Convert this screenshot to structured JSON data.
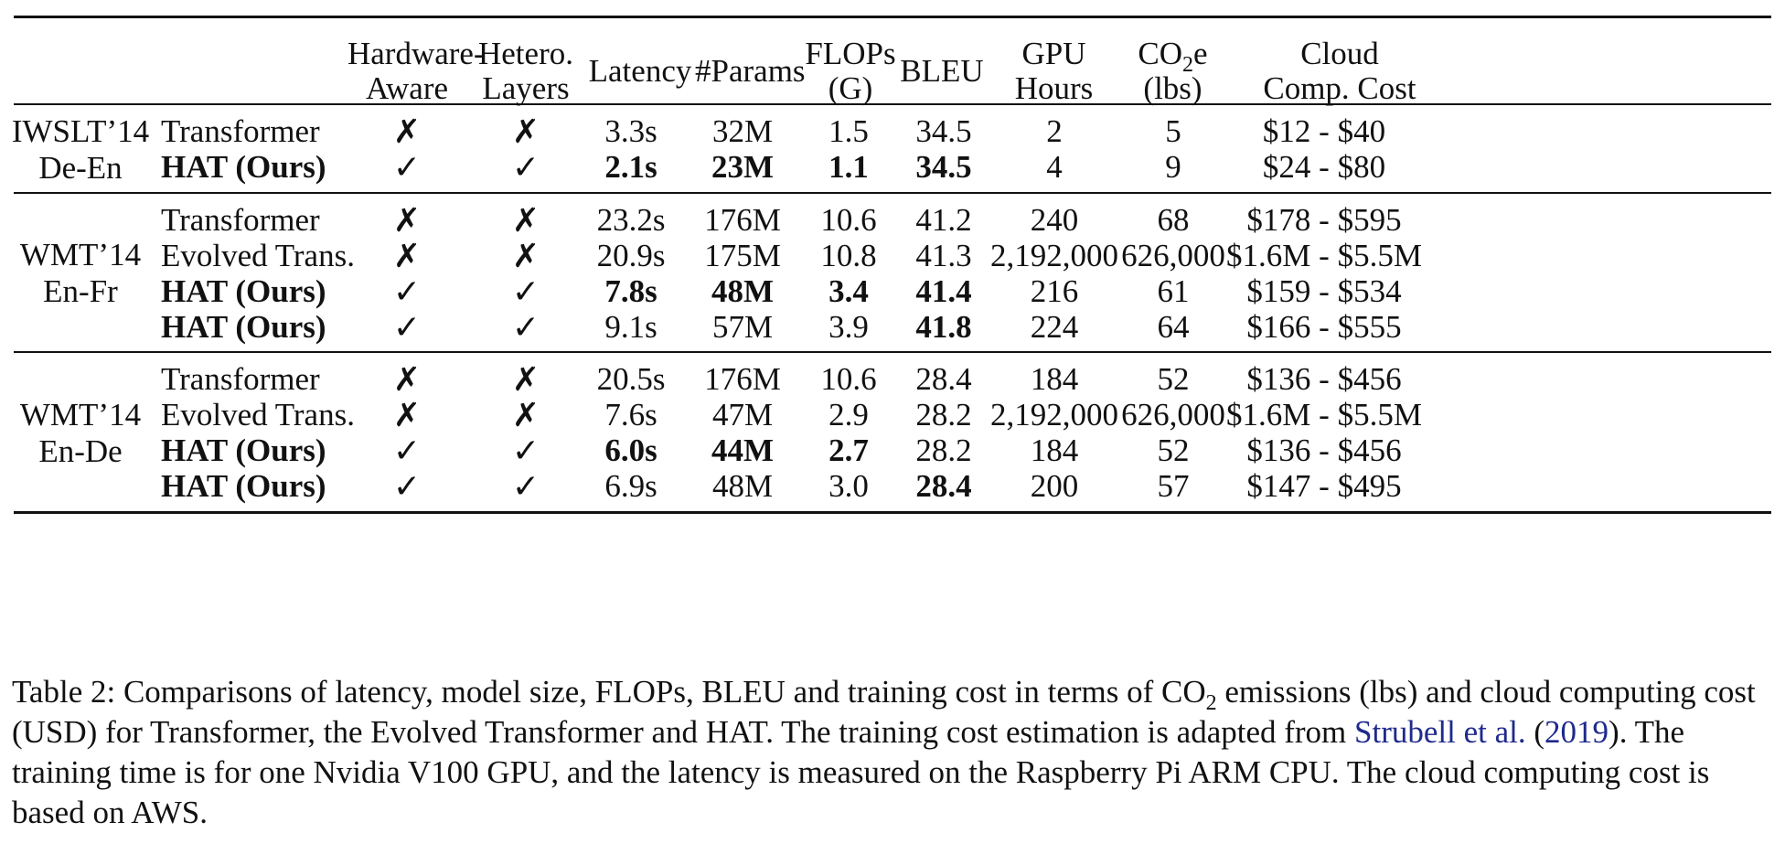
{
  "headers": {
    "hardware_aware": "Hardware-\nAware",
    "hetero_layers": "Hetero.\nLayers",
    "latency": "Latency",
    "params": "#Params",
    "flops": "FLOPs\n(G)",
    "bleu": "BLEU",
    "gpu_hours": "GPU\nHours",
    "co2e_prefix": "CO",
    "co2e_sub": "2",
    "co2e_suffix": "e",
    "co2e_unit": "(lbs)",
    "cloud_cost": "Cloud\nComp. Cost"
  },
  "groups": [
    {
      "dataset_line1": "IWSLT’14",
      "dataset_line2": "De-En",
      "rows": [
        {
          "model": "Transformer",
          "bold_model": false,
          "hw": "✗",
          "het": "✗",
          "latency": "3.3s",
          "params": "32M",
          "flops": "1.5",
          "bleu": "34.5",
          "gpu": "2",
          "co2": "5",
          "cost": "$12 - $40",
          "bold": {
            "latency": false,
            "params": false,
            "flops": false,
            "bleu": false
          }
        },
        {
          "model": "HAT (Ours)",
          "bold_model": true,
          "hw": "✓",
          "het": "✓",
          "latency": "2.1s",
          "params": "23M",
          "flops": "1.1",
          "bleu": "34.5",
          "gpu": "4",
          "co2": "9",
          "cost": "$24 - $80",
          "bold": {
            "latency": true,
            "params": true,
            "flops": true,
            "bleu": true
          }
        }
      ]
    },
    {
      "dataset_line1": "WMT’14",
      "dataset_line2": "En-Fr",
      "rows": [
        {
          "model": "Transformer",
          "bold_model": false,
          "hw": "✗",
          "het": "✗",
          "latency": "23.2s",
          "params": "176M",
          "flops": "10.6",
          "bleu": "41.2",
          "gpu": "240",
          "co2": "68",
          "cost": "$178 - $595",
          "bold": {
            "latency": false,
            "params": false,
            "flops": false,
            "bleu": false
          }
        },
        {
          "model": "Evolved Trans.",
          "bold_model": false,
          "hw": "✗",
          "het": "✗",
          "latency": "20.9s",
          "params": "175M",
          "flops": "10.8",
          "bleu": "41.3",
          "gpu": "2,192,000",
          "co2": "626,000",
          "cost": "$1.6M - $5.5M",
          "bold": {
            "latency": false,
            "params": false,
            "flops": false,
            "bleu": false
          }
        },
        {
          "model": "HAT (Ours)",
          "bold_model": true,
          "hw": "✓",
          "het": "✓",
          "latency": "7.8s",
          "params": "48M",
          "flops": "3.4",
          "bleu": "41.4",
          "gpu": "216",
          "co2": "61",
          "cost": "$159 - $534",
          "bold": {
            "latency": true,
            "params": true,
            "flops": true,
            "bleu": true
          }
        },
        {
          "model": "HAT (Ours)",
          "bold_model": true,
          "hw": "✓",
          "het": "✓",
          "latency": "9.1s",
          "params": "57M",
          "flops": "3.9",
          "bleu": "41.8",
          "gpu": "224",
          "co2": "64",
          "cost": "$166 - $555",
          "bold": {
            "latency": false,
            "params": false,
            "flops": false,
            "bleu": true
          }
        }
      ]
    },
    {
      "dataset_line1": "WMT’14",
      "dataset_line2": "En-De",
      "rows": [
        {
          "model": "Transformer",
          "bold_model": false,
          "hw": "✗",
          "het": "✗",
          "latency": "20.5s",
          "params": "176M",
          "flops": "10.6",
          "bleu": "28.4",
          "gpu": "184",
          "co2": "52",
          "cost": "$136 - $456",
          "bold": {
            "latency": false,
            "params": false,
            "flops": false,
            "bleu": false
          }
        },
        {
          "model": "Evolved Trans.",
          "bold_model": false,
          "hw": "✗",
          "het": "✗",
          "latency": "7.6s",
          "params": "47M",
          "flops": "2.9",
          "bleu": "28.2",
          "gpu": "2,192,000",
          "co2": "626,000",
          "cost": "$1.6M - $5.5M",
          "bold": {
            "latency": false,
            "params": false,
            "flops": false,
            "bleu": false
          }
        },
        {
          "model": "HAT (Ours)",
          "bold_model": true,
          "hw": "✓",
          "het": "✓",
          "latency": "6.0s",
          "params": "44M",
          "flops": "2.7",
          "bleu": "28.2",
          "gpu": "184",
          "co2": "52",
          "cost": "$136 - $456",
          "bold": {
            "latency": true,
            "params": true,
            "flops": true,
            "bleu": false
          }
        },
        {
          "model": "HAT (Ours)",
          "bold_model": true,
          "hw": "✓",
          "het": "✓",
          "latency": "6.9s",
          "params": "48M",
          "flops": "3.0",
          "bleu": "28.4",
          "gpu": "200",
          "co2": "57",
          "cost": "$147 - $495",
          "bold": {
            "latency": false,
            "params": false,
            "flops": false,
            "bleu": true
          }
        }
      ]
    }
  ],
  "caption": {
    "part1": "Table 2: Comparisons of latency, model size, FLOPs, BLEU and training cost in terms of CO",
    "sub": "2",
    "part2": " emissions (lbs) and cloud computing cost (USD) for Transformer, the Evolved Transformer and HAT. The training cost estimation is adapted from ",
    "link_author": "Strubell et al.",
    "paren_open": " (",
    "link_year": "2019",
    "part3": "). The training time is for one Nvidia V100 GPU, and the latency is measured on the Raspberry Pi ARM CPU. The cloud computing cost is based on AWS."
  }
}
